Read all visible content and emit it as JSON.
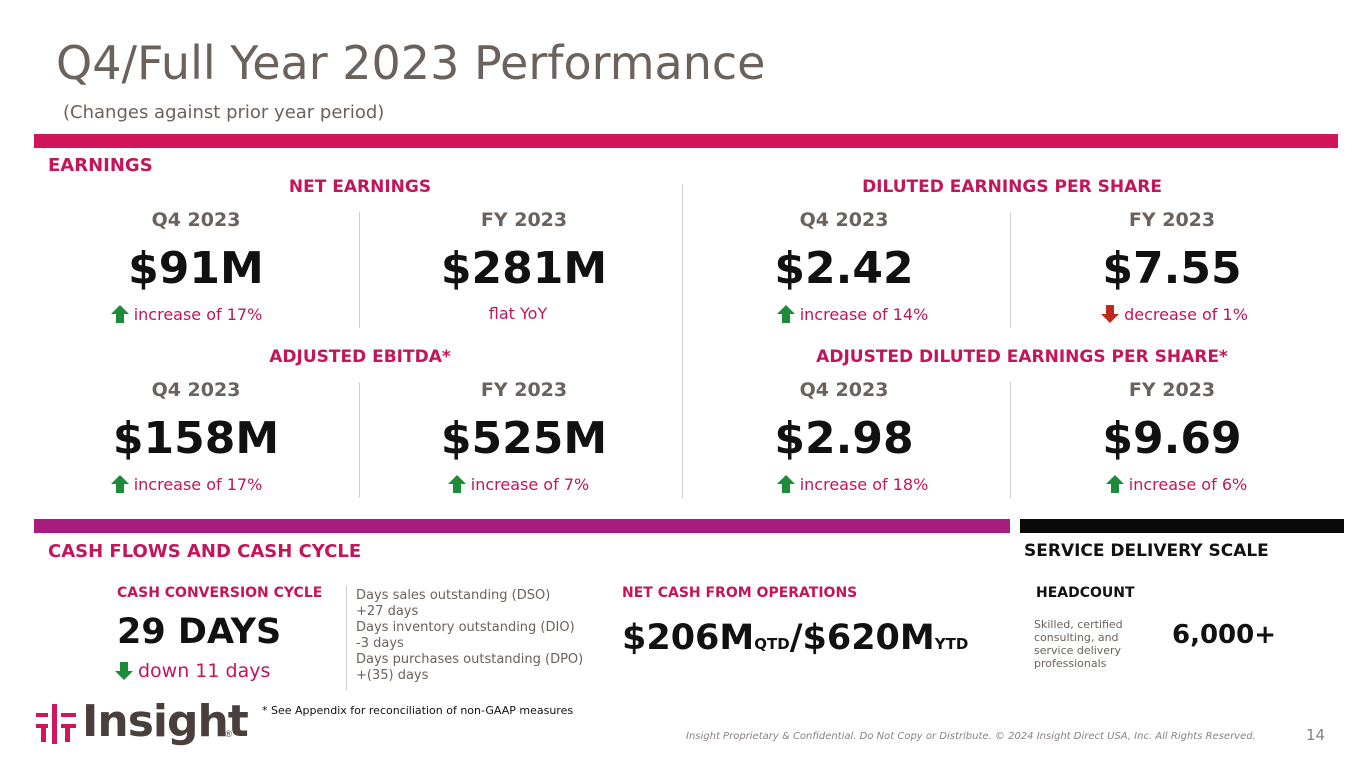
{
  "header": {
    "title": "Q4/Full Year 2023 Performance",
    "subtitle": "(Changes against prior year period)"
  },
  "colors": {
    "accent": "#c4145a",
    "magenta_bar": "#a61c7f",
    "up": "#1e8b3a",
    "down": "#c0281e"
  },
  "earnings": {
    "section_label": "EARNINGS",
    "groups": [
      {
        "heading": "NET EARNINGS",
        "items": [
          {
            "period": "Q4 2023",
            "value": "$91M",
            "change": "increase of 17%",
            "direction": "up"
          },
          {
            "period": "FY 2023",
            "value": "$281M",
            "change": "flat YoY",
            "direction": "none"
          }
        ]
      },
      {
        "heading": "DILUTED EARNINGS PER SHARE",
        "items": [
          {
            "period": "Q4 2023",
            "value": "$2.42",
            "change": "increase of 14%",
            "direction": "up"
          },
          {
            "period": "FY 2023",
            "value": "$7.55",
            "change": "decrease of 1%",
            "direction": "down"
          }
        ]
      },
      {
        "heading": "ADJUSTED EBITDA*",
        "items": [
          {
            "period": "Q4 2023",
            "value": "$158M",
            "change": "increase of 17%",
            "direction": "up"
          },
          {
            "period": "FY 2023",
            "value": "$525M",
            "change": "increase of 7%",
            "direction": "up"
          }
        ]
      },
      {
        "heading": "ADJUSTED DILUTED EARNINGS PER SHARE*",
        "items": [
          {
            "period": "Q4 2023",
            "value": "$2.98",
            "change": "increase of 18%",
            "direction": "up"
          },
          {
            "period": "FY 2023",
            "value": "$9.69",
            "change": "increase of 6%",
            "direction": "up"
          }
        ]
      }
    ]
  },
  "cash": {
    "section_label": "CASH FLOWS AND CASH CYCLE",
    "ccc": {
      "label": "CASH CONVERSION CYCLE",
      "value": "29 DAYS",
      "change": "down 11 days",
      "details": "Days sales outstanding (DSO)\n+27 days\nDays inventory outstanding (DIO)\n-3 days\nDays purchases outstanding (DPO)\n+(35) days"
    },
    "ops": {
      "label": "NET CASH FROM OPERATIONS",
      "qtd_value": "$206M",
      "qtd_suffix": "QTD",
      "separator": "/",
      "ytd_value": "$620M",
      "ytd_suffix": "YTD"
    }
  },
  "service": {
    "section_label": "SERVICE DELIVERY SCALE",
    "headcount_label": "HEADCOUNT",
    "description": "Skilled, certified consulting, and service delivery professionals",
    "value": "6,000+"
  },
  "footer": {
    "logo_text": "Insight",
    "registered": "®",
    "footnote": "*  See Appendix for reconciliation of non-GAAP measures",
    "legal": "Insight Proprietary & Confidential. Do Not Copy or Distribute. © 2024 Insight Direct USA, Inc. All Rights Reserved.",
    "page_number": "14"
  }
}
